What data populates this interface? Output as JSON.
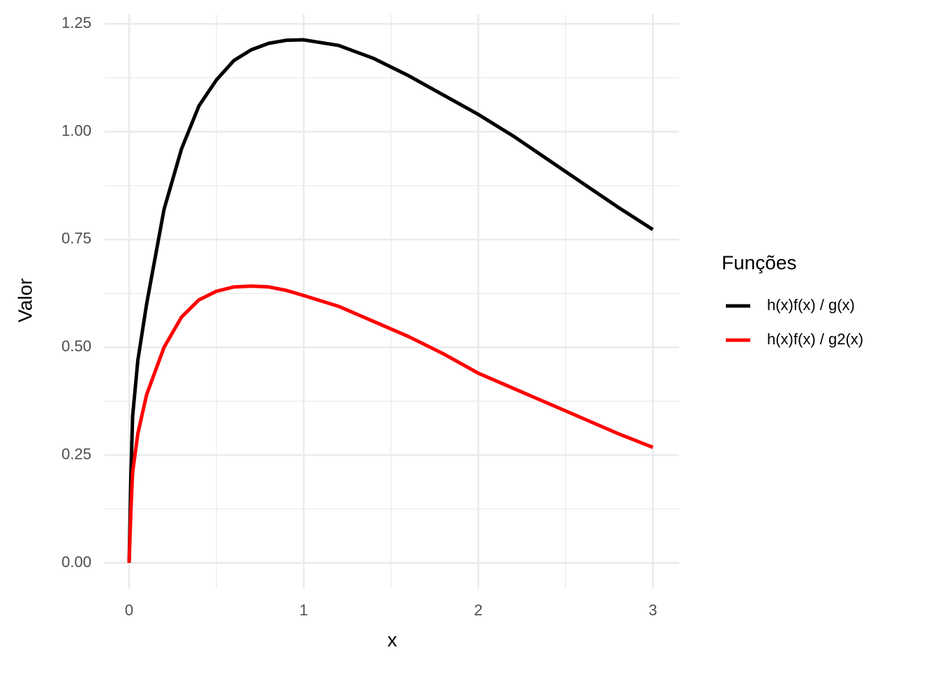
{
  "chart_data": {
    "type": "line",
    "x_label": "x",
    "y_label": "Valor",
    "legend_title": "Funções",
    "x": [
      0,
      0.01,
      0.02,
      0.05,
      0.1,
      0.2,
      0.3,
      0.4,
      0.5,
      0.6,
      0.7,
      0.8,
      0.9,
      1,
      1.2,
      1.4,
      1.6,
      1.8,
      2,
      2.2,
      2.4,
      2.6,
      2.8,
      3
    ],
    "series": [
      {
        "name": "h(x)f(x) / g(x)",
        "color": "#000000",
        "values": [
          0,
          0.2,
          0.34,
          0.47,
          0.6,
          0.82,
          0.96,
          1.06,
          1.12,
          1.165,
          1.19,
          1.205,
          1.212,
          1.213,
          1.2,
          1.17,
          1.13,
          1.085,
          1.04,
          0.99,
          0.935,
          0.88,
          0.825,
          0.773
        ]
      },
      {
        "name": "h(x)f(x) / g2(x)",
        "color": "#ff0000",
        "values": [
          0,
          0.12,
          0.21,
          0.3,
          0.39,
          0.5,
          0.57,
          0.61,
          0.63,
          0.64,
          0.642,
          0.64,
          0.632,
          0.62,
          0.595,
          0.56,
          0.525,
          0.485,
          0.44,
          0.405,
          0.37,
          0.335,
          0.3,
          0.268
        ]
      }
    ],
    "xlim": [
      -0.14,
      3.15
    ],
    "xticks": [
      0,
      1,
      2,
      3
    ],
    "ylim": [
      -0.06,
      1.273
    ],
    "yticks": [
      {
        "value": 0,
        "label": "0.00"
      },
      0.25,
      {
        "value": 0.5,
        "label": "0.50"
      },
      0.75,
      {
        "value": 1,
        "label": "1.00"
      },
      1.25
    ],
    "grid": true,
    "legend": "right"
  }
}
